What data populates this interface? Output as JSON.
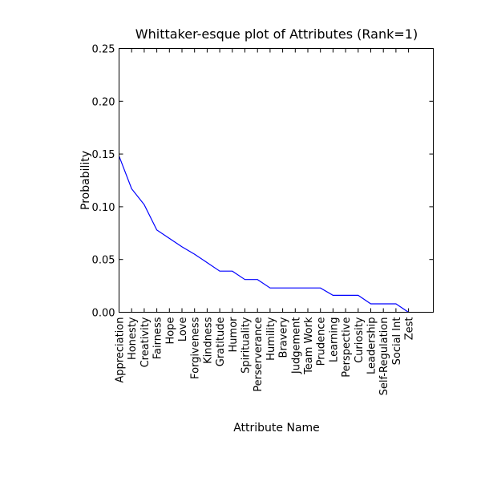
{
  "chart_data": {
    "type": "line",
    "title": "Whittaker-esque plot of Attributes (Rank=1)",
    "xlabel": "Attribute Name",
    "ylabel": "Probability",
    "ylim": [
      0,
      0.25
    ],
    "yticks": [
      "0.00",
      "0.05",
      "0.10",
      "0.15",
      "0.20",
      "0.25"
    ],
    "grid": false,
    "line_color": "#0000ff",
    "categories": [
      "Appreciation",
      "Honesty",
      "Creativity",
      "Fairness",
      "Hope",
      "Love",
      "Forgiveness",
      "Kindness",
      "Gratitude",
      "Humor",
      "Spirituality",
      "Perserverance",
      "Humility",
      "Bravery",
      "Judgement",
      "Team Work",
      "Prudence",
      "Learning",
      "Perspective",
      "Curiosity",
      "Leadership",
      "Self-Regulation",
      "Social Int",
      "Zest"
    ],
    "values": [
      0.148,
      0.117,
      0.102,
      0.078,
      0.07,
      0.062,
      0.055,
      0.047,
      0.039,
      0.039,
      0.031,
      0.031,
      0.023,
      0.023,
      0.023,
      0.023,
      0.023,
      0.016,
      0.016,
      0.016,
      0.008,
      0.008,
      0.008,
      0.0
    ]
  }
}
